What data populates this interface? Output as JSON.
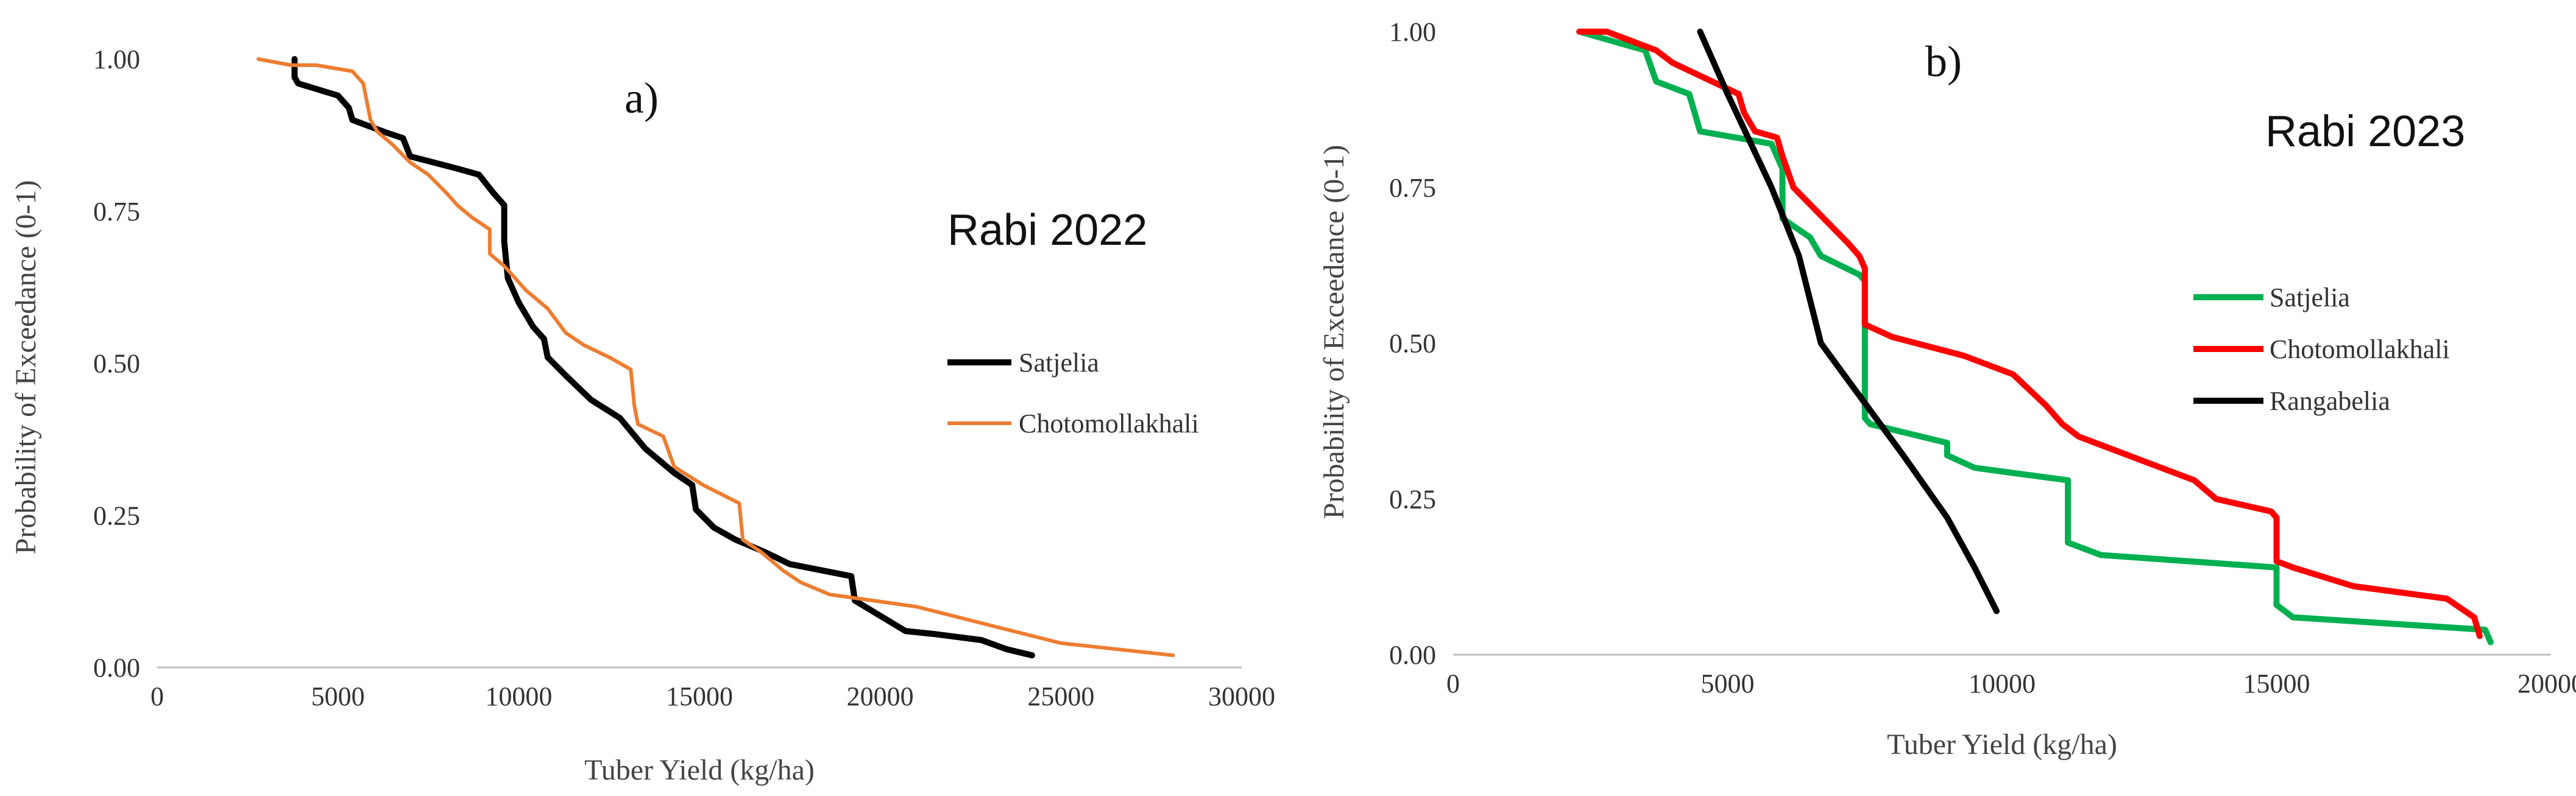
{
  "chart_data": [
    {
      "type": "line",
      "panel_label": "a)",
      "annotation": "Rabi 2022",
      "xlabel": "Tuber Yield (kg/ha)",
      "ylabel": "Probability of Exceedance (0-1)",
      "xlim": [
        0,
        30000
      ],
      "ylim": [
        0,
        1
      ],
      "xticks": [
        0,
        5000,
        10000,
        15000,
        20000,
        25000,
        30000
      ],
      "xtick_labels": [
        "0",
        "5000",
        "10000",
        "15000",
        "20000",
        "25000",
        "30000"
      ],
      "yticks": [
        0,
        0.25,
        0.5,
        0.75,
        1
      ],
      "ytick_labels": [
        "0.00",
        "0.25",
        "0.50",
        "0.75",
        "1.00"
      ],
      "legend_position": "center-right",
      "series": [
        {
          "name": "Satjelia",
          "color": "#000000",
          "x": [
            3800,
            3800,
            3900,
            5000,
            5300,
            5400,
            6300,
            6800,
            7000,
            8300,
            8900,
            9300,
            9600,
            9600,
            9700,
            10000,
            10400,
            10700,
            10800,
            11300,
            12000,
            12800,
            13500,
            14300,
            14800,
            14900,
            15400,
            16000,
            16800,
            17500,
            19200,
            19300,
            20700,
            21500,
            22800,
            23500,
            24200
          ],
          "y": [
            1.0,
            0.97,
            0.96,
            0.94,
            0.92,
            0.9,
            0.88,
            0.87,
            0.84,
            0.82,
            0.81,
            0.78,
            0.76,
            0.7,
            0.64,
            0.6,
            0.56,
            0.54,
            0.51,
            0.48,
            0.44,
            0.41,
            0.36,
            0.32,
            0.3,
            0.26,
            0.23,
            0.21,
            0.19,
            0.17,
            0.15,
            0.11,
            0.06,
            0.055,
            0.045,
            0.03,
            0.02
          ]
        },
        {
          "name": "Chotomollakhali",
          "color": "#ED7D31",
          "x": [
            2800,
            3700,
            4400,
            5400,
            5700,
            5900,
            6100,
            6500,
            7000,
            7500,
            8000,
            8300,
            8700,
            9200,
            9200,
            9600,
            10200,
            10800,
            11300,
            11800,
            12500,
            13100,
            13200,
            13300,
            14000,
            14300,
            15100,
            16100,
            16200,
            16700,
            17300,
            17800,
            18600,
            21000,
            23000,
            25000,
            28100
          ],
          "y": [
            1.0,
            0.99,
            0.99,
            0.98,
            0.96,
            0.9,
            0.88,
            0.86,
            0.83,
            0.81,
            0.78,
            0.76,
            0.74,
            0.72,
            0.68,
            0.66,
            0.62,
            0.59,
            0.55,
            0.53,
            0.51,
            0.49,
            0.43,
            0.4,
            0.38,
            0.33,
            0.3,
            0.27,
            0.21,
            0.19,
            0.16,
            0.14,
            0.12,
            0.1,
            0.07,
            0.04,
            0.02
          ]
        }
      ]
    },
    {
      "type": "line",
      "panel_label": "b)",
      "annotation": "Rabi 2023",
      "xlabel": "Tuber Yield (kg/ha)",
      "ylabel": "Probability of Exceedance (0-1)",
      "xlim": [
        0,
        20000
      ],
      "ylim": [
        0,
        1
      ],
      "xticks": [
        0,
        5000,
        10000,
        15000,
        20000
      ],
      "xtick_labels": [
        "0",
        "5000",
        "10000",
        "15000",
        "20000"
      ],
      "yticks": [
        0,
        0.25,
        0.5,
        0.75,
        1
      ],
      "ytick_labels": [
        "0.00",
        "0.25",
        "0.50",
        "0.75",
        "1.00"
      ],
      "legend_position": "center-right",
      "series": [
        {
          "name": "Satjelia",
          "color": "#00B050",
          "x": [
            2300,
            3500,
            3700,
            4300,
            4500,
            5800,
            6000,
            6000,
            6500,
            6700,
            7400,
            7500,
            7500,
            7600,
            9000,
            9000,
            9500,
            11200,
            11200,
            11800,
            15000,
            15000,
            15300,
            18800,
            18900
          ],
          "y": [
            1.0,
            0.97,
            0.92,
            0.9,
            0.84,
            0.82,
            0.78,
            0.7,
            0.67,
            0.64,
            0.61,
            0.6,
            0.38,
            0.37,
            0.34,
            0.32,
            0.3,
            0.28,
            0.18,
            0.16,
            0.14,
            0.08,
            0.06,
            0.04,
            0.02
          ]
        },
        {
          "name": "Chotomollakhali",
          "color": "#FF0000",
          "x": [
            2300,
            2800,
            3700,
            4000,
            5200,
            5300,
            5500,
            5900,
            6000,
            6200,
            7200,
            7400,
            7500,
            7500,
            8000,
            9300,
            10200,
            10800,
            11100,
            11400,
            13500,
            13900,
            14900,
            15000,
            15000,
            15300,
            16400,
            18100,
            18600,
            18700
          ],
          "y": [
            1.0,
            1.0,
            0.97,
            0.95,
            0.9,
            0.87,
            0.84,
            0.83,
            0.8,
            0.75,
            0.66,
            0.64,
            0.62,
            0.53,
            0.51,
            0.48,
            0.45,
            0.4,
            0.37,
            0.35,
            0.28,
            0.25,
            0.23,
            0.22,
            0.15,
            0.14,
            0.11,
            0.09,
            0.06,
            0.03
          ]
        },
        {
          "name": "Rangabelia",
          "color": "#000000",
          "x": [
            4500,
            5000,
            5800,
            6300,
            6700,
            7200,
            7700,
            8200,
            9000,
            9500,
            9900
          ],
          "y": [
            1.0,
            0.9,
            0.75,
            0.64,
            0.5,
            0.44,
            0.38,
            0.32,
            0.22,
            0.14,
            0.07
          ]
        }
      ]
    }
  ]
}
